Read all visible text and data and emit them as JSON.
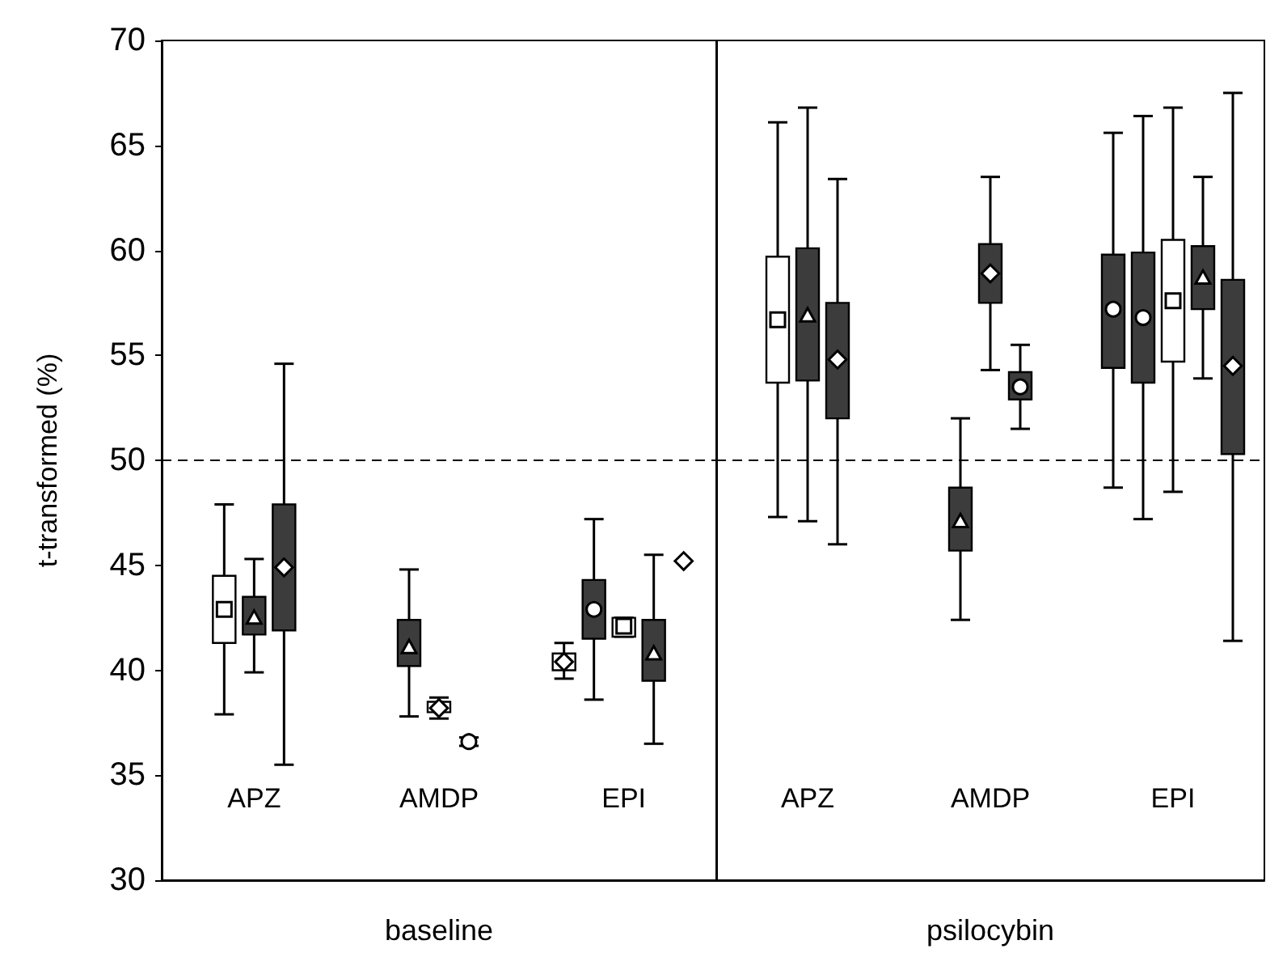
{
  "chart_data": [
    {
      "type": "box",
      "xlabel": "baseline",
      "ylabel": "t-transformed (%)",
      "categories": [
        "APZ",
        "AMDP",
        "EPI"
      ],
      "ylim": [
        30,
        70
      ],
      "yticks": [
        30,
        35,
        40,
        45,
        50,
        55,
        60,
        65,
        70
      ],
      "ref_lines": [
        {
          "axis": "y",
          "value": 50,
          "line_style": "dashed"
        }
      ],
      "series": [
        {
          "color": "#ffffff",
          "marker": "square",
          "boxes": [
            {
              "low": 37.9,
              "q1": 41.3,
              "median": 42.9,
              "q3": 44.5,
              "high": 47.9
            },
            null,
            null
          ]
        },
        {
          "color": "#3c3c3c",
          "marker": "triangle",
          "boxes": [
            {
              "low": 39.9,
              "q1": 41.7,
              "median": 42.5,
              "q3": 43.5,
              "high": 45.3
            },
            null,
            null
          ]
        },
        {
          "color": "#3c3c3c",
          "marker": "diamond",
          "boxes": [
            {
              "low": 35.5,
              "q1": 41.9,
              "median": 44.9,
              "q3": 47.9,
              "high": 54.6
            },
            null,
            null
          ]
        },
        {
          "color": "#3c3c3c",
          "marker": "triangle",
          "boxes": [
            null,
            {
              "low": 37.8,
              "q1": 40.2,
              "median": 41.1,
              "q3": 42.4,
              "high": 44.8
            },
            null
          ]
        },
        {
          "color": "#ffffff",
          "marker": "diamond",
          "boxes": [
            null,
            {
              "low": 37.7,
              "q1": 38.0,
              "median": 38.2,
              "q3": 38.5,
              "high": 38.7
            },
            null
          ]
        },
        {
          "type": "scatter",
          "color": "#ffffff",
          "marker": "circle",
          "x": [
            "AMDP"
          ],
          "values": [
            36.6
          ],
          "errors": [
            0.2
          ]
        },
        {
          "color": "#ffffff",
          "marker": "diamond",
          "boxes": [
            null,
            null,
            {
              "low": 39.6,
              "q1": 40.0,
              "median": 40.4,
              "q3": 40.8,
              "high": 41.3
            }
          ]
        },
        {
          "color": "#3c3c3c",
          "marker": "circle",
          "boxes": [
            null,
            null,
            {
              "low": 38.6,
              "q1": 41.5,
              "median": 42.9,
              "q3": 44.3,
              "high": 47.2
            }
          ]
        },
        {
          "color": "#ffffff",
          "marker": "square",
          "boxes": [
            null,
            null,
            {
              "low": 41.6,
              "q1": 41.6,
              "median": 42.1,
              "q3": 42.5,
              "high": 42.5
            }
          ]
        },
        {
          "color": "#3c3c3c",
          "marker": "triangle",
          "boxes": [
            null,
            null,
            {
              "low": 36.5,
              "q1": 39.5,
              "median": 40.8,
              "q3": 42.4,
              "high": 45.5
            }
          ]
        },
        {
          "type": "scatter",
          "color": "#ffffff",
          "marker": "diamond",
          "x": [
            "EPI"
          ],
          "values": [
            45.2
          ]
        }
      ]
    },
    {
      "type": "box",
      "xlabel": "psilocybin",
      "categories": [
        "APZ",
        "AMDP",
        "EPI"
      ],
      "ylim": [
        30,
        70
      ],
      "yticks": [
        30,
        35,
        40,
        45,
        50,
        55,
        60,
        65,
        70
      ],
      "tick_labels": "x",
      "ref_lines": [
        {
          "axis": "y",
          "value": 50,
          "line_style": "dashed"
        }
      ],
      "series": [
        {
          "color": "#ffffff",
          "marker": "square",
          "boxes": [
            {
              "low": 47.3,
              "q1": 53.7,
              "median": 56.7,
              "q3": 59.7,
              "high": 66.1
            },
            null,
            null
          ]
        },
        {
          "color": "#3c3c3c",
          "marker": "triangle",
          "boxes": [
            {
              "low": 47.1,
              "q1": 53.8,
              "median": 56.9,
              "q3": 60.1,
              "high": 66.8
            },
            null,
            null
          ]
        },
        {
          "color": "#3c3c3c",
          "marker": "diamond",
          "boxes": [
            {
              "low": 46.0,
              "q1": 52.0,
              "median": 54.8,
              "q3": 57.5,
              "high": 63.4
            },
            null,
            null
          ]
        },
        {
          "color": "#3c3c3c",
          "marker": "triangle",
          "boxes": [
            null,
            {
              "low": 42.4,
              "q1": 45.7,
              "median": 47.1,
              "q3": 48.7,
              "high": 52.0
            },
            null
          ]
        },
        {
          "color": "#3c3c3c",
          "marker": "diamond",
          "boxes": [
            null,
            {
              "low": 54.3,
              "q1": 57.5,
              "median": 58.9,
              "q3": 60.3,
              "high": 63.5
            },
            null
          ]
        },
        {
          "color": "#3c3c3c",
          "marker": "circle",
          "boxes": [
            null,
            {
              "low": 51.5,
              "q1": 52.9,
              "median": 53.5,
              "q3": 54.2,
              "high": 55.5
            },
            null
          ]
        },
        {
          "color": "#3c3c3c",
          "marker": "circle",
          "boxes": [
            null,
            null,
            {
              "low": 48.7,
              "q1": 54.4,
              "median": 57.2,
              "q3": 59.8,
              "high": 65.6
            }
          ]
        },
        {
          "color": "#3c3c3c",
          "marker": "circle",
          "boxes": [
            null,
            null,
            {
              "low": 47.2,
              "q1": 53.7,
              "median": 56.8,
              "q3": 59.9,
              "high": 66.4
            }
          ]
        },
        {
          "color": "#ffffff",
          "marker": "square",
          "boxes": [
            null,
            null,
            {
              "low": 48.5,
              "q1": 54.7,
              "median": 57.6,
              "q3": 60.5,
              "high": 66.8
            }
          ]
        },
        {
          "color": "#3c3c3c",
          "marker": "triangle",
          "boxes": [
            null,
            null,
            {
              "low": 53.9,
              "q1": 57.2,
              "median": 58.7,
              "q3": 60.2,
              "high": 63.5
            }
          ]
        },
        {
          "color": "#3c3c3c",
          "marker": "diamond",
          "boxes": [
            null,
            null,
            {
              "low": 41.4,
              "q1": 50.3,
              "median": 54.5,
              "q3": 58.6,
              "high": 67.5
            }
          ]
        }
      ]
    }
  ]
}
